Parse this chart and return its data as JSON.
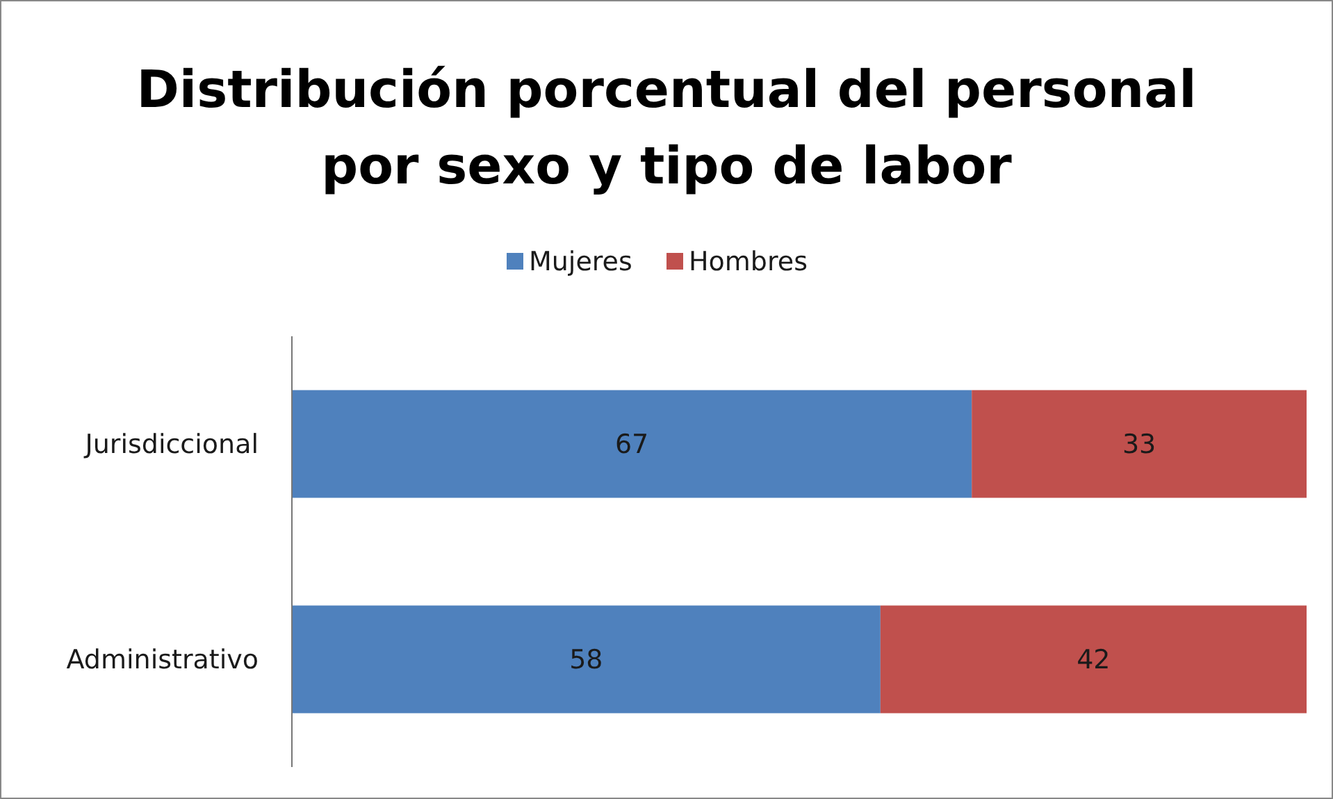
{
  "chart_data": {
    "type": "bar",
    "title": "Distribución porcentual del personal\npor sexo y tipo de labor",
    "categories": [
      "Jurisdiccional",
      "Administrativo"
    ],
    "orientation": "horizontal",
    "stacked": true,
    "data_labels": true,
    "legend": "top",
    "series": [
      {
        "name": "Mujeres",
        "color": "#4f81bd",
        "values": [
          67,
          58
        ]
      },
      {
        "name": "Hombres",
        "color": "#c0504d",
        "values": [
          33,
          42
        ]
      }
    ]
  }
}
